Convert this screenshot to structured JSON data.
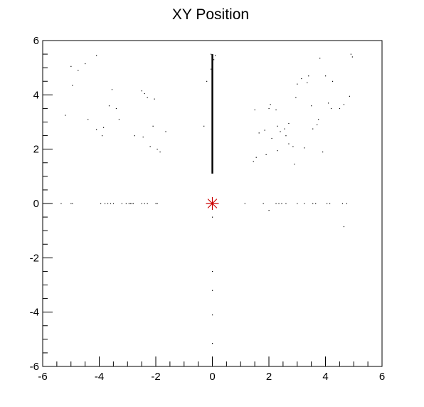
{
  "chart_data": {
    "type": "scatter",
    "title": "XY Position",
    "xlabel": "",
    "ylabel": "",
    "xlim": [
      -6,
      6
    ],
    "ylim": [
      -6,
      6
    ],
    "x_ticks": [
      -6,
      -4,
      -2,
      0,
      2,
      4,
      6
    ],
    "y_ticks": [
      -6,
      -4,
      -2,
      0,
      2,
      4,
      6
    ],
    "grid": false,
    "legend": "none",
    "point_color": "#000000",
    "marker": {
      "x": 0,
      "y": 0,
      "symbol": "star",
      "color": "#cc0000"
    },
    "series": [
      {
        "values": [
          [
            -5.0,
            5.05
          ],
          [
            -4.95,
            4.35
          ],
          [
            -4.75,
            4.9
          ],
          [
            -4.5,
            5.15
          ],
          [
            -4.1,
            5.45
          ],
          [
            -5.2,
            3.25
          ],
          [
            -4.4,
            3.1
          ],
          [
            -4.1,
            2.72
          ],
          [
            -3.9,
            2.5
          ],
          [
            -3.85,
            2.8
          ],
          [
            -3.65,
            3.6
          ],
          [
            -3.55,
            4.2
          ],
          [
            -3.4,
            3.5
          ],
          [
            -3.3,
            3.1
          ],
          [
            -2.75,
            2.5
          ],
          [
            -2.5,
            4.15
          ],
          [
            -2.4,
            4.05
          ],
          [
            -2.45,
            2.45
          ],
          [
            -2.3,
            3.9
          ],
          [
            -2.1,
            2.85
          ],
          [
            -2.05,
            3.85
          ],
          [
            -1.95,
            2.0
          ],
          [
            -1.85,
            1.9
          ],
          [
            -1.65,
            2.65
          ],
          [
            -2.2,
            2.1
          ],
          [
            -0.3,
            2.85
          ],
          [
            1.45,
            1.55
          ],
          [
            1.55,
            1.7
          ],
          [
            1.5,
            3.45
          ],
          [
            1.65,
            2.6
          ],
          [
            1.85,
            2.7
          ],
          [
            1.9,
            1.8
          ],
          [
            2.0,
            3.5
          ],
          [
            2.05,
            3.65
          ],
          [
            2.1,
            2.4
          ],
          [
            2.25,
            3.45
          ],
          [
            2.3,
            2.85
          ],
          [
            2.4,
            2.65
          ],
          [
            2.55,
            2.75
          ],
          [
            2.6,
            2.5
          ],
          [
            2.7,
            2.95
          ],
          [
            2.85,
            2.1
          ],
          [
            2.9,
            1.45
          ],
          [
            2.95,
            3.9
          ],
          [
            3.0,
            4.4
          ],
          [
            3.15,
            4.6
          ],
          [
            3.25,
            2.05
          ],
          [
            3.4,
            4.7
          ],
          [
            3.5,
            3.6
          ],
          [
            3.55,
            2.75
          ],
          [
            3.7,
            2.9
          ],
          [
            3.75,
            3.1
          ],
          [
            3.8,
            5.35
          ],
          [
            3.9,
            1.9
          ],
          [
            4.0,
            4.7
          ],
          [
            4.1,
            3.7
          ],
          [
            4.2,
            3.5
          ],
          [
            4.25,
            4.5
          ],
          [
            4.5,
            3.5
          ],
          [
            4.65,
            3.65
          ],
          [
            4.85,
            3.95
          ],
          [
            4.9,
            5.5
          ],
          [
            4.95,
            5.4
          ],
          [
            2.7,
            2.2
          ],
          [
            3.35,
            4.45
          ],
          [
            2.3,
            1.95
          ],
          [
            -5.35,
            0.0
          ],
          [
            -5.0,
            0.0
          ],
          [
            -4.95,
            0.0
          ],
          [
            -3.95,
            0.0
          ],
          [
            -3.8,
            0.0
          ],
          [
            -3.7,
            0.0
          ],
          [
            -3.6,
            0.0
          ],
          [
            -3.5,
            0.0
          ],
          [
            -3.2,
            0.0
          ],
          [
            -3.05,
            0.0
          ],
          [
            -2.95,
            0.0
          ],
          [
            -2.9,
            0.0
          ],
          [
            -2.85,
            0.0
          ],
          [
            -2.8,
            0.0
          ],
          [
            -2.5,
            0.0
          ],
          [
            -2.4,
            0.0
          ],
          [
            -2.3,
            0.0
          ],
          [
            -2.0,
            0.0
          ],
          [
            -1.95,
            0.0
          ],
          [
            1.15,
            0.0
          ],
          [
            1.8,
            0.0
          ],
          [
            2.25,
            0.0
          ],
          [
            2.35,
            0.0
          ],
          [
            2.45,
            0.0
          ],
          [
            2.6,
            0.0
          ],
          [
            3.0,
            0.0
          ],
          [
            3.25,
            0.0
          ],
          [
            3.55,
            0.0
          ],
          [
            3.65,
            0.0
          ],
          [
            4.05,
            0.0
          ],
          [
            4.15,
            0.0
          ],
          [
            4.6,
            0.0
          ],
          [
            4.75,
            0.0
          ],
          [
            2.0,
            -0.25
          ],
          [
            4.65,
            -0.85
          ],
          [
            0.0,
            -0.5
          ],
          [
            0.0,
            -2.5
          ],
          [
            0.0,
            -3.2
          ],
          [
            0.0,
            -4.1
          ],
          [
            0.0,
            -5.15
          ],
          [
            -0.2,
            4.5
          ],
          [
            0.1,
            5.45
          ],
          [
            -0.05,
            5.5
          ],
          [
            0.05,
            5.3
          ],
          [
            -0.05,
            4.95
          ]
        ]
      },
      {
        "type": "dense_column",
        "x": 0.0,
        "y_range": [
          1.1,
          5.5
        ]
      }
    ]
  }
}
